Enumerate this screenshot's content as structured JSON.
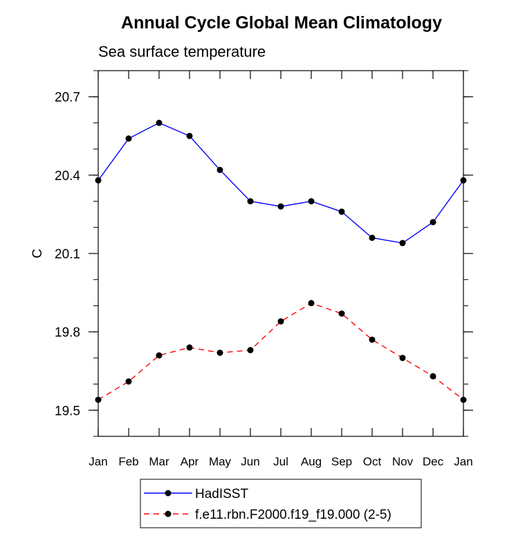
{
  "chart_data": {
    "type": "line",
    "title": "Annual Cycle Global Mean Climatology",
    "subtitle": "Sea surface temperature",
    "xlabel": "",
    "ylabel": "C",
    "categories": [
      "Jan",
      "Feb",
      "Mar",
      "Apr",
      "May",
      "Jun",
      "Jul",
      "Aug",
      "Sep",
      "Oct",
      "Nov",
      "Dec",
      "Jan"
    ],
    "ylim": [
      19.4,
      20.8
    ],
    "yticks": [
      19.5,
      19.8,
      20.1,
      20.4,
      20.7
    ],
    "ytick_labels": [
      "19.5",
      "19.8",
      "20.1",
      "20.4",
      "20.7"
    ],
    "grid": false,
    "legend_position": "bottom-center",
    "series": [
      {
        "name": "HadISST",
        "color": "#0000ff",
        "dash": "solid",
        "values": [
          20.38,
          20.54,
          20.6,
          20.55,
          20.42,
          20.3,
          20.28,
          20.3,
          20.26,
          20.16,
          20.14,
          20.22,
          20.38
        ]
      },
      {
        "name": "f.e11.rbn.F2000.f19_f19.000 (2-5)",
        "color": "#ff0000",
        "dash": "dashed",
        "values": [
          19.54,
          19.61,
          19.71,
          19.74,
          19.72,
          19.73,
          19.84,
          19.91,
          19.87,
          19.77,
          19.7,
          19.63,
          19.54
        ]
      }
    ]
  }
}
